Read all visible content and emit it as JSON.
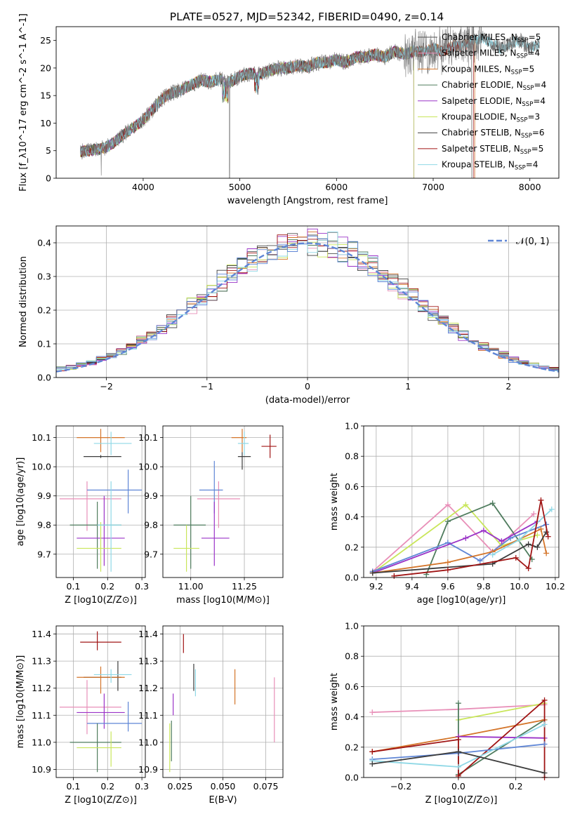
{
  "figure_title": "PLATE=0527, MJD=52342, FIBERID=0490, z=0.14",
  "model_colors": {
    "Chabrier MILES": "#4f4f4f",
    "Salpeter MILES": "#e88fb8",
    "Kroupa MILES": "#d4752a",
    "Chabrier ELODIE": "#4f7c5e",
    "Salpeter ELODIE": "#9a33c7",
    "Kroupa ELODIE": "#c9e65a",
    "Chabrier STELIB": "#3c3c3c",
    "Salpeter STELIB": "#a01515",
    "Kroupa STELIB": "#8fd8e6",
    "blue_extra": "#5f86d6"
  },
  "chart_data": [
    {
      "type": "line",
      "id": "spectrum",
      "xlabel": "wavelength [Angstrom, rest frame]",
      "ylabel": "Flux [f_λ10^-17 erg cm^-2 s^-1 A^-1]",
      "xlim": [
        3100,
        8300
      ],
      "ylim": [
        0,
        27.5
      ],
      "xticks": [
        4000,
        5000,
        6000,
        7000,
        8000
      ],
      "yticks": [
        0,
        5,
        10,
        15,
        20,
        25
      ],
      "grid": false,
      "legend_position": "top-right",
      "legend": [
        {
          "name": "Chabrier MILES",
          "n": "5"
        },
        {
          "name": "Salpeter MILES",
          "n": "4"
        },
        {
          "name": "Kroupa MILES",
          "n": "5"
        },
        {
          "name": "Chabrier ELODIE",
          "n": "4"
        },
        {
          "name": "Salpeter ELODIE",
          "n": "4"
        },
        {
          "name": "Kroupa ELODIE",
          "n": "3"
        },
        {
          "name": "Chabrier STELIB",
          "n": "6"
        },
        {
          "name": "Salpeter STELIB",
          "n": "5"
        },
        {
          "name": "Kroupa STELIB",
          "n": "4"
        }
      ],
      "data_x": [
        3350,
        3500,
        3600,
        3700,
        3800,
        3900,
        4000,
        4100,
        4200,
        4300,
        4400,
        4500,
        4600,
        4700,
        4800,
        4900,
        5000,
        5100,
        5200,
        5300,
        5400,
        5500,
        5600,
        5700,
        5800,
        5900,
        6000,
        6100,
        6200,
        6300,
        6400,
        6500,
        6600,
        6700,
        6800,
        6900,
        7000,
        7100,
        7200,
        7300,
        7400,
        7500,
        7600,
        7700,
        7800,
        7900,
        8000,
        8100
      ],
      "data_y": [
        4.8,
        5.2,
        5.5,
        6.5,
        8.0,
        9.2,
        10.5,
        12.5,
        14.5,
        15.5,
        16.0,
        17.0,
        17.8,
        17.5,
        18.0,
        17.5,
        18.5,
        19.0,
        18.8,
        19.5,
        20.0,
        20.0,
        20.5,
        20.2,
        21.0,
        21.0,
        21.5,
        21.0,
        22.0,
        22.0,
        22.5,
        22.0,
        23.0,
        22.5,
        23.0,
        23.0,
        23.5,
        23.0,
        24.0,
        24.0,
        25.0,
        25.5,
        24.5,
        23.5,
        24.5,
        25.0,
        23.5,
        24.5
      ]
    },
    {
      "type": "bar",
      "id": "residuals",
      "xlabel": "(data-model)/error",
      "ylabel": "Normed distribution",
      "xlim": [
        -2.5,
        2.5
      ],
      "ylim": [
        0,
        0.45
      ],
      "xticks": [
        -2,
        -1,
        0,
        1,
        2
      ],
      "yticks": [
        0.0,
        0.1,
        0.2,
        0.3,
        0.4
      ],
      "grid": true,
      "bin_width": 0.1,
      "legend_position": "top-right",
      "legend": [
        {
          "name": "𝒩(0, 1)"
        }
      ]
    },
    {
      "type": "scatter",
      "id": "z_age",
      "xlabel": "Z [log10(Z/Z⊙)]",
      "ylabel": "age  [log10(age/yr)]",
      "xlim": [
        0.05,
        0.31
      ],
      "ylim": [
        9.62,
        10.14
      ],
      "xticks": [
        0.1,
        0.2,
        0.3
      ],
      "yticks": [
        9.7,
        9.8,
        9.9,
        10.0,
        10.1
      ],
      "grid": true,
      "points": [
        {
          "x": 0.18,
          "y": 10.1,
          "xerr": [
            0.11,
            0.25
          ],
          "yerr": [
            10.05,
            10.13
          ]
        },
        {
          "x": 0.21,
          "y": 10.08,
          "xerr": [
            0.16,
            0.27
          ],
          "yerr": [
            10.04,
            10.12
          ]
        },
        {
          "x": 0.18,
          "y": 10.035,
          "xerr": [
            0.13,
            0.24
          ],
          "yerr": [
            10.03,
            10.04
          ]
        },
        {
          "x": 0.14,
          "y": 9.89,
          "xerr": [
            0.06,
            0.24
          ],
          "yerr": [
            9.78,
            9.95
          ]
        },
        {
          "x": 0.26,
          "y": 9.92,
          "xerr": [
            0.14,
            0.3
          ],
          "yerr": [
            9.84,
            9.99
          ]
        },
        {
          "x": 0.17,
          "y": 9.8,
          "xerr": [
            0.09,
            0.24
          ],
          "yerr": [
            9.65,
            9.88
          ]
        },
        {
          "x": 0.19,
          "y": 9.755,
          "xerr": [
            0.11,
            0.25
          ],
          "yerr": [
            9.66,
            9.9
          ]
        },
        {
          "x": 0.18,
          "y": 9.72,
          "xerr": [
            0.11,
            0.24
          ],
          "yerr": [
            9.64,
            9.81
          ]
        },
        {
          "x": 0.21,
          "y": 9.8,
          "xerr": [
            0.17,
            0.24
          ],
          "yerr": [
            9.64,
            9.95
          ]
        }
      ]
    },
    {
      "type": "scatter",
      "id": "mass_age",
      "xlabel": "mass [log10(M/M⊙)]",
      "ylabel": "",
      "xlim": [
        10.87,
        11.43
      ],
      "ylim": [
        9.62,
        10.14
      ],
      "xticks": [
        11.0,
        11.25
      ],
      "yticks": [
        9.7,
        9.8,
        9.9,
        10.0,
        10.1
      ],
      "grid": true,
      "points": [
        {
          "x": 11.24,
          "y": 10.1,
          "xerr": [
            11.19,
            11.26
          ],
          "yerr": [
            10.05,
            10.13
          ]
        },
        {
          "x": 11.25,
          "y": 10.08,
          "xerr": [
            11.22,
            11.27
          ],
          "yerr": [
            10.04,
            10.12
          ]
        },
        {
          "x": 11.24,
          "y": 10.035,
          "xerr": [
            11.22,
            11.28
          ],
          "yerr": [
            9.99,
            10.05
          ]
        },
        {
          "x": 11.37,
          "y": 10.07,
          "xerr": [
            11.33,
            11.4
          ],
          "yerr": [
            10.03,
            10.11
          ]
        },
        {
          "x": 11.13,
          "y": 9.89,
          "xerr": [
            11.03,
            11.23
          ],
          "yerr": [
            9.79,
            9.95
          ]
        },
        {
          "x": 11.11,
          "y": 9.92,
          "xerr": [
            11.04,
            11.15
          ],
          "yerr": [
            9.84,
            10.02
          ]
        },
        {
          "x": 11.0,
          "y": 9.8,
          "xerr": [
            10.92,
            11.07
          ],
          "yerr": [
            9.65,
            9.9
          ]
        },
        {
          "x": 11.11,
          "y": 9.755,
          "xerr": [
            11.05,
            11.18
          ],
          "yerr": [
            9.66,
            9.88
          ]
        },
        {
          "x": 10.98,
          "y": 9.72,
          "xerr": [
            10.92,
            11.04
          ],
          "yerr": [
            9.64,
            9.8
          ]
        }
      ]
    },
    {
      "type": "line",
      "id": "age_weight",
      "xlabel": "age  [log10(age/yr)]",
      "ylabel": "mass weight",
      "xlim": [
        9.13,
        10.22
      ],
      "ylim": [
        0,
        1.0
      ],
      "xticks": [
        9.2,
        9.4,
        9.6,
        9.8,
        10.0,
        10.2
      ],
      "yticks": [
        0.0,
        0.2,
        0.4,
        0.6,
        0.8,
        1.0
      ],
      "grid": true,
      "series": [
        {
          "color_key": "Salpeter MILES",
          "x": [
            9.18,
            9.6,
            9.85,
            10.08
          ],
          "y": [
            0.04,
            0.48,
            0.17,
            0.42
          ]
        },
        {
          "color_key": "Kroupa ELODIE",
          "x": [
            9.18,
            9.7,
            9.9,
            10.1
          ],
          "y": [
            0.03,
            0.48,
            0.21,
            0.28
          ]
        },
        {
          "color_key": "Chabrier ELODIE",
          "x": [
            9.48,
            9.6,
            9.85,
            10.07
          ],
          "y": [
            0.02,
            0.37,
            0.49,
            0.12
          ]
        },
        {
          "color_key": "blue_extra",
          "x": [
            9.18,
            9.6,
            9.78,
            9.95,
            10.15
          ],
          "y": [
            0.04,
            0.23,
            0.11,
            0.26,
            0.35
          ]
        },
        {
          "color_key": "Salpeter ELODIE",
          "x": [
            9.18,
            9.7,
            9.8,
            9.9,
            10.1
          ],
          "y": [
            0.03,
            0.26,
            0.31,
            0.24,
            0.37
          ]
        },
        {
          "color_key": "Kroupa MILES",
          "x": [
            9.18,
            9.6,
            9.85,
            10.12,
            10.15
          ],
          "y": [
            0.03,
            0.1,
            0.17,
            0.32,
            0.16
          ]
        },
        {
          "color_key": "Kroupa STELIB",
          "x": [
            9.85,
            10.0,
            10.18
          ],
          "y": [
            0.15,
            0.25,
            0.45
          ]
        },
        {
          "color_key": "Chabrier STELIB",
          "x": [
            9.18,
            9.85,
            10.05,
            10.1,
            10.15
          ],
          "y": [
            0.03,
            0.09,
            0.22,
            0.2,
            0.3
          ]
        },
        {
          "color_key": "Salpeter STELIB",
          "x": [
            9.3,
            9.6,
            9.98,
            10.05,
            10.12,
            10.16
          ],
          "y": [
            0.01,
            0.05,
            0.13,
            0.06,
            0.51,
            0.27
          ]
        }
      ]
    },
    {
      "type": "scatter",
      "id": "z_mass",
      "xlabel": "Z [log10(Z/Z⊙)]",
      "ylabel": "mass [log10(M/M⊙)]",
      "xlim": [
        0.05,
        0.31
      ],
      "ylim": [
        10.87,
        11.43
      ],
      "xticks": [
        0.1,
        0.2,
        0.3
      ],
      "yticks": [
        10.9,
        11.0,
        11.1,
        11.2,
        11.3,
        11.4
      ],
      "grid": true,
      "points": [
        {
          "x": 0.17,
          "y": 11.37,
          "xerr": [
            0.12,
            0.24
          ],
          "yerr": [
            11.34,
            11.41
          ]
        },
        {
          "x": 0.23,
          "y": 11.24,
          "xerr": [
            0.13,
            0.24
          ],
          "yerr": [
            11.19,
            11.3
          ]
        },
        {
          "x": 0.18,
          "y": 11.24,
          "xerr": [
            0.11,
            0.25
          ],
          "yerr": [
            11.18,
            11.28
          ]
        },
        {
          "x": 0.21,
          "y": 11.25,
          "xerr": [
            0.16,
            0.27
          ],
          "yerr": [
            11.22,
            11.27
          ]
        },
        {
          "x": 0.14,
          "y": 11.13,
          "xerr": [
            0.06,
            0.24
          ],
          "yerr": [
            11.03,
            11.23
          ]
        },
        {
          "x": 0.19,
          "y": 11.11,
          "xerr": [
            0.11,
            0.25
          ],
          "yerr": [
            11.05,
            11.18
          ]
        },
        {
          "x": 0.26,
          "y": 11.07,
          "xerr": [
            0.14,
            0.3
          ],
          "yerr": [
            11.04,
            11.15
          ]
        },
        {
          "x": 0.17,
          "y": 11.0,
          "xerr": [
            0.09,
            0.24
          ],
          "yerr": [
            10.89,
            11.07
          ]
        },
        {
          "x": 0.21,
          "y": 10.98,
          "xerr": [
            0.11,
            0.24
          ],
          "yerr": [
            10.91,
            11.04
          ]
        }
      ]
    },
    {
      "type": "scatter",
      "id": "ebv_mass",
      "xlabel": "E(B-V)",
      "ylabel": "",
      "xlim": [
        0.015,
        0.085
      ],
      "ylim": [
        10.87,
        11.43
      ],
      "xticks": [
        0.025,
        0.05,
        0.075
      ],
      "yticks": [
        10.9,
        11.0,
        11.1,
        11.2,
        11.3,
        11.4
      ],
      "grid": true,
      "segments": [
        {
          "color_key": "Salpeter STELIB",
          "x": 0.027,
          "y0": 11.33,
          "y1": 11.4
        },
        {
          "color_key": "Chabrier STELIB",
          "x": 0.033,
          "y0": 11.19,
          "y1": 11.29
        },
        {
          "color_key": "Kroupa STELIB",
          "x": 0.034,
          "y0": 11.17,
          "y1": 11.27
        },
        {
          "color_key": "Kroupa MILES",
          "x": 0.057,
          "y0": 11.14,
          "y1": 11.27
        },
        {
          "color_key": "Salpeter ELODIE",
          "x": 0.021,
          "y0": 11.1,
          "y1": 11.18
        },
        {
          "color_key": "Chabrier ELODIE",
          "x": 0.02,
          "y0": 10.93,
          "y1": 11.08
        },
        {
          "color_key": "Kroupa ELODIE",
          "x": 0.019,
          "y0": 10.89,
          "y1": 11.07
        },
        {
          "color_key": "Salpeter MILES",
          "x": 0.08,
          "y0": 11.0,
          "y1": 11.24
        }
      ]
    },
    {
      "type": "line",
      "id": "z_weight",
      "xlabel": "Z [log10(Z/Z⊙)]",
      "ylabel": "mass weight",
      "xlim": [
        -0.33,
        0.35
      ],
      "ylim": [
        0,
        1.0
      ],
      "xticks": [
        -0.2,
        0.0,
        0.2
      ],
      "yticks": [
        0.0,
        0.2,
        0.4,
        0.6,
        0.8,
        1.0
      ],
      "grid": true,
      "series": [
        {
          "color_key": "Salpeter MILES",
          "x": [
            -0.3,
            0.0,
            0.3
          ],
          "y": [
            0.43,
            0.45,
            0.48
          ]
        },
        {
          "color_key": "Kroupa ELODIE",
          "x": [
            0.0,
            0.3
          ],
          "y": [
            0.38,
            0.49
          ]
        },
        {
          "color_key": "Chabrier ELODIE",
          "x": [
            0.0,
            0.0,
            0.3
          ],
          "y": [
            0.49,
            0.02,
            0.38
          ]
        },
        {
          "color_key": "Kroupa MILES",
          "x": [
            -0.3,
            0.0,
            0.3
          ],
          "y": [
            0.17,
            0.27,
            0.38
          ]
        },
        {
          "color_key": "Salpeter ELODIE",
          "x": [
            0.0,
            0.3
          ],
          "y": [
            0.27,
            0.26
          ]
        },
        {
          "color_key": "Salpeter STELIB",
          "x": [
            -0.3,
            0.0,
            0.0,
            0.3,
            0.3
          ],
          "y": [
            0.17,
            0.25,
            0.01,
            0.51,
            0.0
          ]
        },
        {
          "color_key": "blue_extra",
          "x": [
            -0.3,
            0.0,
            0.3
          ],
          "y": [
            0.12,
            0.16,
            0.22
          ]
        },
        {
          "color_key": "Kroupa STELIB",
          "x": [
            -0.3,
            0.0,
            0.3
          ],
          "y": [
            0.11,
            0.07,
            0.35
          ]
        },
        {
          "color_key": "Chabrier STELIB",
          "x": [
            -0.3,
            0.0,
            0.3
          ],
          "y": [
            0.09,
            0.17,
            0.03
          ]
        }
      ]
    }
  ]
}
